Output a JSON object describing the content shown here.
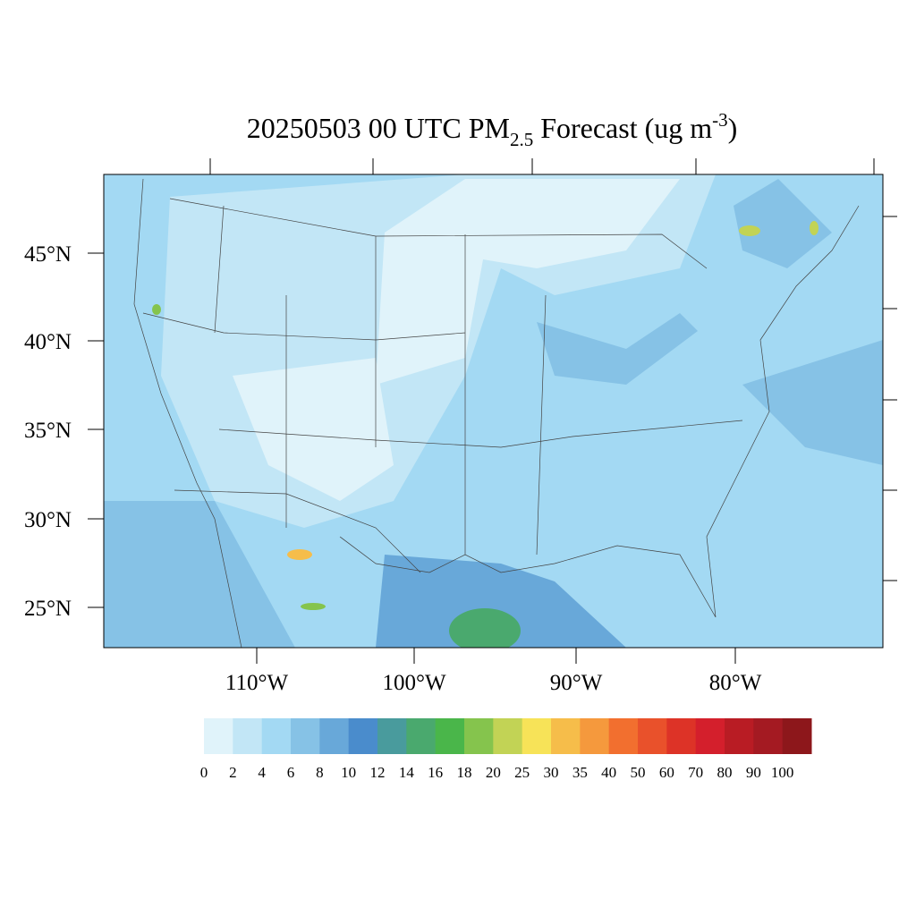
{
  "title": {
    "main": "20250503 00 UTC PM",
    "subscript": "2.5",
    "middle": " Forecast (ug m",
    "superscript": "-3",
    "end": ")"
  },
  "latitude_labels": [
    "45°N",
    "40°N",
    "35°N",
    "30°N",
    "25°N"
  ],
  "longitude_labels": [
    "110°W",
    "100°W",
    "90°W",
    "80°W"
  ],
  "colorbar": {
    "levels": [
      0,
      2,
      4,
      6,
      8,
      10,
      12,
      14,
      16,
      18,
      20,
      25,
      30,
      35,
      40,
      50,
      60,
      70,
      80,
      90,
      100
    ],
    "colors": [
      "#e0f3fa",
      "#c2e6f6",
      "#a3d9f3",
      "#86c2e6",
      "#68a8d9",
      "#4a8ccc",
      "#499b9d",
      "#4aa96e",
      "#4ab64a",
      "#85c44d",
      "#c2d355",
      "#f7e358",
      "#f6bd4a",
      "#f5993d",
      "#f26f2f",
      "#e9512b",
      "#dd3327",
      "#d41f2c",
      "#b91c24",
      "#a41a22",
      "#8d171b"
    ]
  }
}
